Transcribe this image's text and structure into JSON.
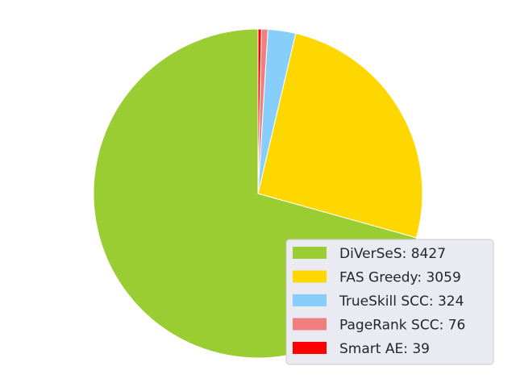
{
  "chart_data": {
    "type": "pie",
    "labels": [
      "DiVerSeS: 8427",
      "FAS Greedy: 3059",
      "TrueSkill SCC: 324",
      "PageRank SCC: 76",
      "Smart AE: 39"
    ],
    "values": [
      8427,
      3059,
      324,
      76,
      39
    ],
    "colors": [
      "#9acd32",
      "#ffd700",
      "#87cefa",
      "#f08080",
      "#ff0000"
    ],
    "start_angle_deg": 90,
    "direction": "counterclockwise",
    "legend_position": "lower-right",
    "legend_background": "#eaeaf2",
    "title": "",
    "xlabel": "",
    "ylabel": ""
  }
}
